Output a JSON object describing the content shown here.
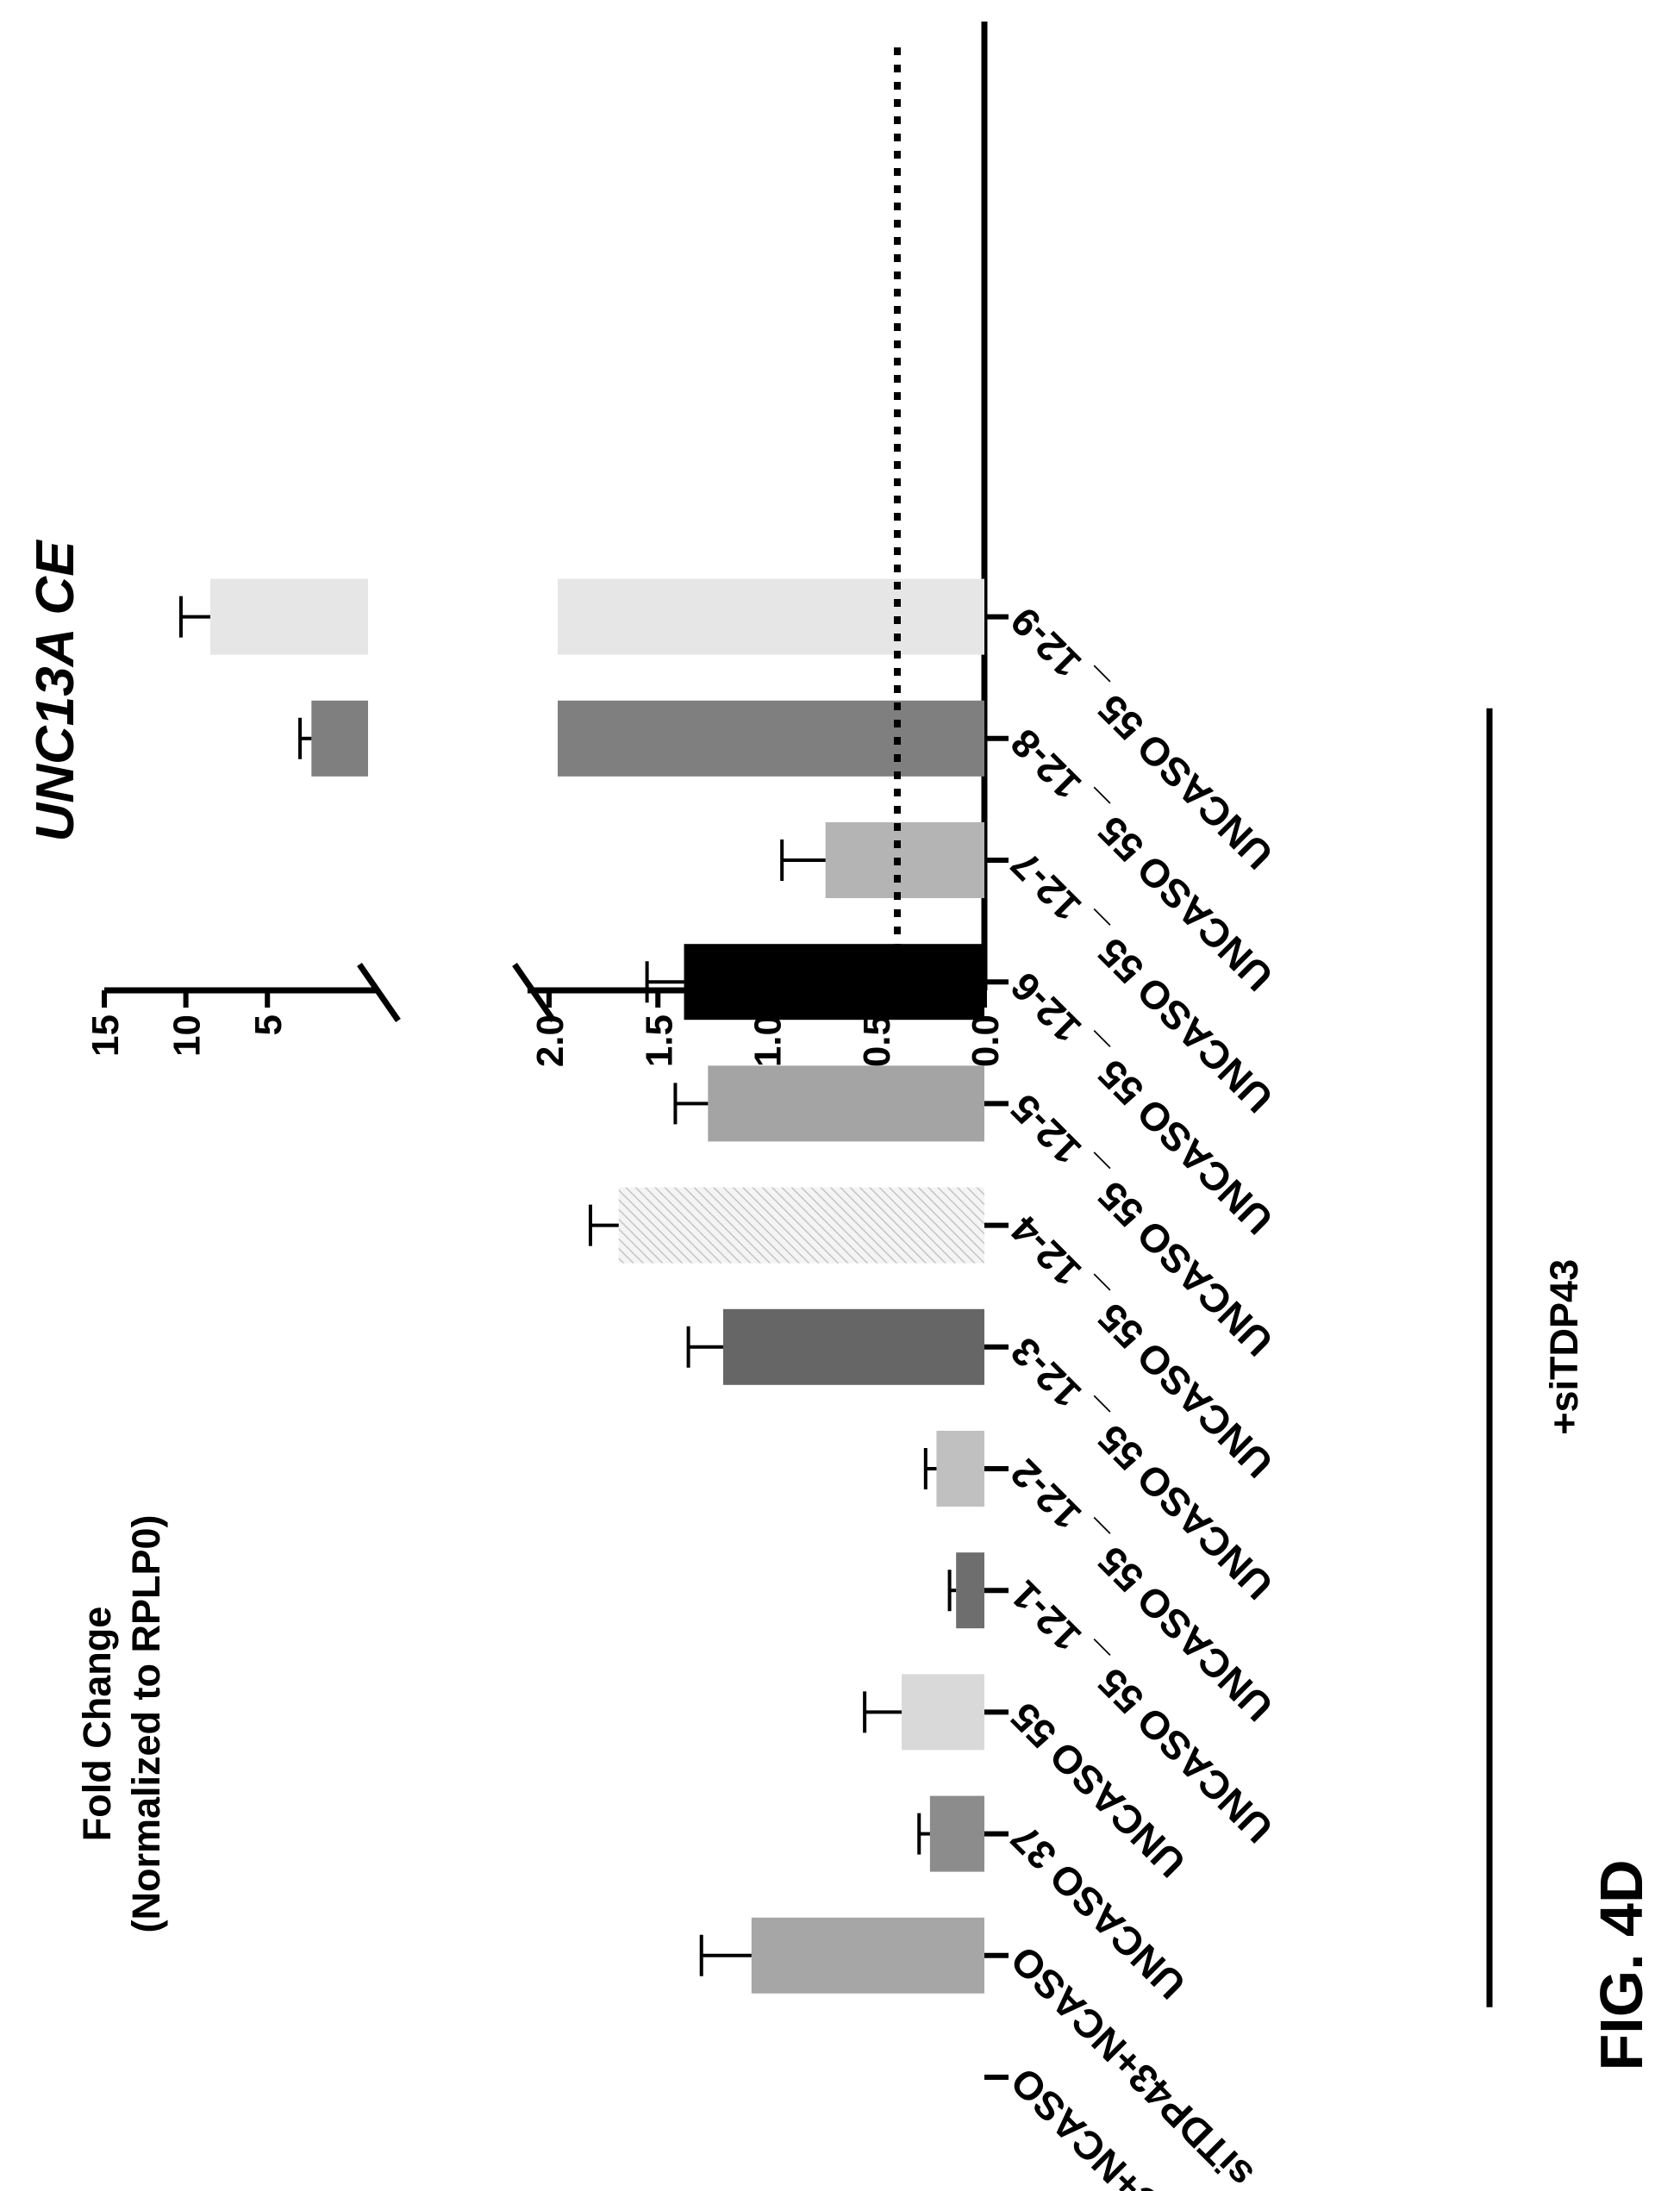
{
  "figure_label": "FIG. 4D",
  "chart_data": {
    "type": "bar",
    "title": "UNC13A CE",
    "ylabel_line1": "Fold Change",
    "ylabel_line2": "(Normalized to RPLP0)",
    "ylim_lower": [
      0,
      2
    ],
    "ylim_upper": [
      2,
      15
    ],
    "y_ticks_lower": [
      "0.0",
      "0.5",
      "1.0",
      "1.5",
      "2.0"
    ],
    "y_ticks_upper": [
      "5",
      "10",
      "15"
    ],
    "reference_line": 0.4,
    "group_label": "+siTDP43",
    "group_range": [
      1,
      11
    ],
    "categories": [
      "siNC+NCASO",
      "siTDP43+NCASO",
      "UNCASO 37",
      "UNCASO 55",
      "UNCASO 55 _ 12-1",
      "UNCASO 55 _ 12-2",
      "UNCASO 55 _ 12-3",
      "UNCASO 55 _ 12-4",
      "UNCASO 55 _ 12-5",
      "UNCASO 55 _ 12-6",
      "UNCASO 55 _ 12-7",
      "UNCASO 55 _ 12-8",
      "UNCASO 55 _ 12-9"
    ],
    "values": [
      null,
      1.07,
      0.25,
      0.38,
      0.13,
      0.22,
      1.2,
      1.68,
      1.27,
      1.38,
      0.73,
      2.3,
      8.5
    ],
    "errors": [
      null,
      0.23,
      0.05,
      0.17,
      0.03,
      0.05,
      0.16,
      0.13,
      0.15,
      0.17,
      0.2,
      0.7,
      1.8
    ],
    "colors": [
      "#ffffff",
      "#a6a6a6",
      "#8c8c8c",
      "#d9d9d9",
      "#6e6e6e",
      "#c0c0c0",
      "#666666",
      "#efefef",
      "#a4a4a4",
      "#000000",
      "#b4b4b4",
      "#7f7f7f",
      "#e6e6e6"
    ],
    "hatched": [
      false,
      false,
      false,
      false,
      false,
      false,
      false,
      true,
      false,
      false,
      false,
      false,
      false
    ]
  }
}
